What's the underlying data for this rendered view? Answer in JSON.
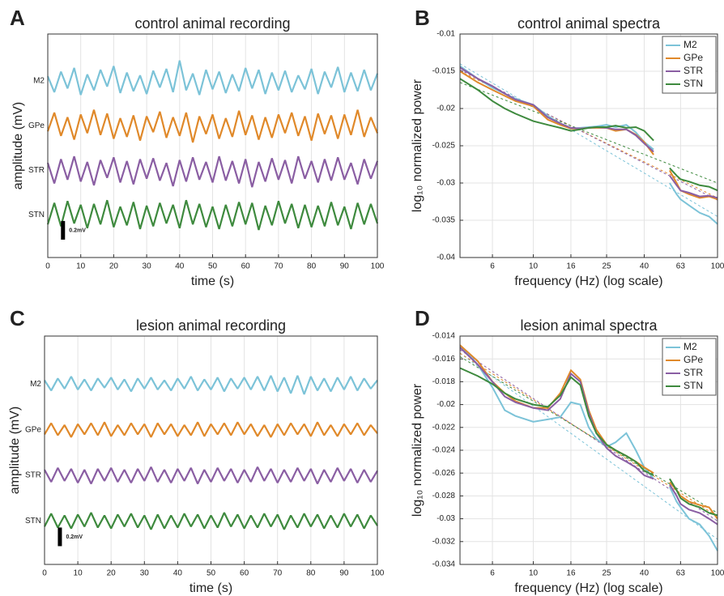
{
  "chart_data": [
    {
      "type": "trace",
      "panel": "A",
      "title": "control animal recording",
      "xlabel": "time (s)",
      "ylabel": "amplitude (mV)",
      "xlim": [
        0,
        100
      ],
      "xticks": [
        0,
        10,
        20,
        30,
        40,
        50,
        60,
        70,
        80,
        90,
        100
      ],
      "grid": true,
      "scale_bar": {
        "value": 0.2,
        "label": "0.2mV"
      },
      "x": [
        0,
        2,
        4,
        6,
        8,
        10,
        12,
        14,
        16,
        18,
        20,
        22,
        24,
        26,
        28,
        30,
        32,
        34,
        36,
        38,
        40,
        42,
        44,
        46,
        48,
        50,
        52,
        54,
        56,
        58,
        60,
        62,
        64,
        66,
        68,
        70,
        72,
        74,
        76,
        78,
        80,
        82,
        84,
        86,
        88,
        90,
        92,
        94,
        96,
        98,
        100
      ],
      "series": [
        {
          "name": "M2",
          "color": "#7cc3d8",
          "values": [
            0.05,
            -0.12,
            0.1,
            -0.08,
            0.14,
            -0.15,
            0.07,
            -0.1,
            0.12,
            -0.06,
            0.16,
            -0.13,
            0.09,
            -0.11,
            0.06,
            -0.14,
            0.11,
            -0.07,
            0.13,
            -0.12,
            0.22,
            -0.1,
            0.08,
            -0.15,
            0.12,
            -0.09,
            0.1,
            -0.13,
            0.07,
            -0.11,
            0.14,
            -0.08,
            0.12,
            -0.14,
            0.09,
            -0.1,
            0.11,
            -0.12,
            0.06,
            -0.09,
            0.13,
            -0.14,
            0.1,
            -0.07,
            0.15,
            -0.12,
            0.09,
            -0.11,
            0.12,
            -0.1,
            0.08
          ]
        },
        {
          "name": "GPe",
          "color": "#e0892a",
          "values": [
            -0.06,
            0.14,
            -0.11,
            0.09,
            -0.15,
            0.12,
            -0.08,
            0.17,
            -0.1,
            0.13,
            -0.14,
            0.08,
            -0.12,
            0.11,
            -0.16,
            0.1,
            -0.07,
            0.15,
            -0.13,
            0.09,
            -0.11,
            0.14,
            -0.18,
            0.1,
            -0.09,
            0.12,
            -0.14,
            0.08,
            -0.12,
            0.16,
            -0.1,
            0.11,
            -0.15,
            0.09,
            -0.13,
            0.12,
            -0.08,
            0.14,
            -0.11,
            0.1,
            -0.16,
            0.13,
            -0.09,
            0.11,
            -0.14,
            0.12,
            -0.1,
            0.17,
            -0.12,
            0.09,
            -0.08
          ]
        },
        {
          "name": "STR",
          "color": "#8a5ea3",
          "values": [
            0.08,
            -0.14,
            0.12,
            -0.1,
            0.15,
            -0.12,
            0.09,
            -0.16,
            0.11,
            -0.08,
            0.14,
            -0.13,
            0.1,
            -0.15,
            0.12,
            -0.09,
            0.13,
            -0.11,
            0.08,
            -0.17,
            0.11,
            -0.12,
            0.14,
            -0.1,
            0.09,
            -0.13,
            0.15,
            -0.11,
            0.1,
            -0.14,
            0.12,
            -0.18,
            0.09,
            -0.12,
            0.13,
            -0.1,
            0.11,
            -0.14,
            0.15,
            -0.09,
            0.1,
            -0.13,
            0.12,
            -0.11,
            0.14,
            -0.1,
            0.08,
            -0.15,
            0.12,
            -0.09,
            0.1
          ]
        },
        {
          "name": "STN",
          "color": "#3e8a3e",
          "values": [
            -0.1,
            0.13,
            -0.12,
            0.15,
            -0.09,
            0.11,
            -0.14,
            0.12,
            -0.1,
            0.16,
            -0.13,
            0.09,
            -0.11,
            0.14,
            -0.15,
            0.1,
            -0.12,
            0.13,
            -0.09,
            0.11,
            -0.14,
            0.16,
            -0.1,
            0.12,
            -0.13,
            0.09,
            -0.15,
            0.11,
            -0.12,
            0.14,
            -0.1,
            0.13,
            -0.16,
            0.1,
            -0.11,
            0.15,
            -0.09,
            0.12,
            -0.14,
            0.11,
            -0.13,
            0.1,
            -0.12,
            0.14,
            -0.11,
            0.09,
            -0.15,
            0.13,
            -0.1,
            0.12,
            -0.09
          ]
        }
      ]
    },
    {
      "type": "line",
      "panel": "B",
      "title": "control animal spectra",
      "xlabel": "frequency (Hz) (log scale)",
      "ylabel": "log₁₀ normalized power",
      "xscale": "log",
      "xlim": [
        4,
        100
      ],
      "xticks": [
        6,
        10,
        16,
        25,
        40,
        63,
        100
      ],
      "ylim": [
        -0.04,
        -0.01
      ],
      "yticks": [
        -0.04,
        -0.035,
        -0.03,
        -0.025,
        -0.02,
        -0.015,
        -0.01
      ],
      "grid": true,
      "legend": "top-right",
      "x": [
        4,
        5,
        6,
        7,
        8,
        10,
        12,
        14,
        16,
        18,
        20,
        22,
        25,
        28,
        32,
        36,
        40,
        45,
        50,
        55,
        60,
        63,
        70,
        80,
        90,
        100
      ],
      "series": [
        {
          "name": "M2",
          "color": "#7cc3d8",
          "values": [
            -0.0143,
            -0.016,
            -0.0172,
            -0.018,
            -0.0187,
            -0.0195,
            -0.021,
            -0.022,
            -0.0227,
            -0.0226,
            -0.0225,
            -0.0224,
            -0.0222,
            -0.0225,
            -0.0222,
            -0.0232,
            -0.0245,
            -0.0255,
            null,
            -0.03,
            -0.0315,
            -0.0322,
            -0.033,
            -0.034,
            -0.0345,
            -0.0355
          ],
          "fit": [
            -0.014,
            -0.0345
          ]
        },
        {
          "name": "GPe",
          "color": "#e0892a",
          "values": [
            -0.015,
            -0.0165,
            -0.0175,
            -0.0183,
            -0.019,
            -0.0197,
            -0.0215,
            -0.0222,
            -0.0227,
            -0.0227,
            -0.0226,
            -0.0226,
            -0.0226,
            -0.023,
            -0.0228,
            -0.0235,
            -0.0245,
            -0.0262,
            null,
            -0.0283,
            -0.03,
            -0.031,
            -0.0315,
            -0.032,
            -0.0318,
            -0.0322
          ],
          "fit": [
            -0.015,
            -0.032
          ]
        },
        {
          "name": "STR",
          "color": "#8a5ea3",
          "values": [
            -0.0145,
            -0.016,
            -0.017,
            -0.018,
            -0.0188,
            -0.0195,
            -0.0212,
            -0.022,
            -0.0226,
            -0.0227,
            -0.0226,
            -0.0225,
            -0.0226,
            -0.0228,
            -0.0228,
            -0.0236,
            -0.0247,
            -0.0258,
            null,
            -0.029,
            -0.0303,
            -0.031,
            -0.0313,
            -0.0318,
            -0.0317,
            -0.032
          ],
          "fit": [
            -0.0148,
            -0.0323
          ]
        },
        {
          "name": "STN",
          "color": "#3e8a3e",
          "values": [
            -0.016,
            -0.0175,
            -0.019,
            -0.02,
            -0.0207,
            -0.0217,
            -0.0222,
            -0.0226,
            -0.023,
            -0.0228,
            -0.0226,
            -0.0225,
            -0.0225,
            -0.0223,
            -0.0226,
            -0.0225,
            -0.023,
            -0.0243,
            null,
            -0.028,
            -0.029,
            -0.0295,
            -0.0298,
            -0.0303,
            -0.0305,
            -0.031
          ],
          "fit": [
            -0.0165,
            -0.03
          ]
        }
      ]
    },
    {
      "type": "trace",
      "panel": "C",
      "title": "lesion animal recording",
      "xlabel": "time (s)",
      "ylabel": "amplitude (mV)",
      "xlim": [
        0,
        100
      ],
      "xticks": [
        0,
        10,
        20,
        30,
        40,
        50,
        60,
        70,
        80,
        90,
        100
      ],
      "grid": true,
      "scale_bar": {
        "value": 0.2,
        "label": "0.2mV"
      },
      "x": [
        0,
        2,
        4,
        6,
        8,
        10,
        12,
        14,
        16,
        18,
        20,
        22,
        24,
        26,
        28,
        30,
        32,
        34,
        36,
        38,
        40,
        42,
        44,
        46,
        48,
        50,
        52,
        54,
        56,
        58,
        60,
        62,
        64,
        66,
        68,
        70,
        72,
        74,
        76,
        78,
        80,
        82,
        84,
        86,
        88,
        90,
        92,
        94,
        96,
        98,
        100
      ],
      "series": [
        {
          "name": "M2",
          "color": "#7cc3d8",
          "values": [
            0.04,
            -0.07,
            0.06,
            -0.05,
            0.08,
            -0.06,
            0.05,
            -0.07,
            0.06,
            -0.04,
            0.07,
            -0.06,
            0.05,
            -0.08,
            0.06,
            -0.05,
            0.07,
            -0.06,
            0.04,
            -0.07,
            0.06,
            -0.05,
            0.08,
            -0.07,
            0.05,
            -0.06,
            0.07,
            -0.08,
            0.06,
            -0.05,
            0.07,
            -0.06,
            0.08,
            -0.07,
            0.09,
            -0.08,
            0.07,
            -0.1,
            0.09,
            -0.11,
            0.08,
            -0.07,
            0.06,
            -0.08,
            0.07,
            -0.06,
            0.08,
            -0.07,
            0.06,
            -0.05,
            0.04
          ]
        },
        {
          "name": "GPe",
          "color": "#e0892a",
          "values": [
            -0.05,
            0.07,
            -0.06,
            0.05,
            -0.08,
            0.06,
            -0.05,
            0.07,
            -0.06,
            0.08,
            -0.07,
            0.05,
            -0.06,
            0.07,
            -0.05,
            0.06,
            -0.08,
            0.07,
            -0.05,
            0.06,
            -0.07,
            0.05,
            -0.06,
            0.08,
            -0.07,
            0.06,
            -0.05,
            0.07,
            -0.06,
            0.08,
            -0.05,
            0.06,
            -0.07,
            0.05,
            -0.08,
            0.06,
            -0.06,
            0.07,
            -0.05,
            0.06,
            -0.07,
            0.08,
            -0.06,
            0.05,
            -0.07,
            0.06,
            -0.05,
            0.07,
            -0.06,
            0.05,
            -0.04
          ]
        },
        {
          "name": "STR",
          "color": "#8a5ea3",
          "values": [
            0.06,
            -0.07,
            0.08,
            -0.06,
            0.07,
            -0.08,
            0.06,
            -0.09,
            0.07,
            -0.06,
            0.08,
            -0.07,
            0.06,
            -0.08,
            0.07,
            -0.06,
            0.09,
            -0.07,
            0.06,
            -0.08,
            0.07,
            -0.06,
            0.08,
            -0.09,
            0.06,
            -0.07,
            0.08,
            -0.06,
            0.07,
            -0.08,
            0.06,
            -0.07,
            0.09,
            -0.06,
            0.07,
            -0.08,
            0.06,
            -0.07,
            0.08,
            -0.06,
            0.07,
            -0.09,
            0.06,
            -0.07,
            0.08,
            -0.06,
            0.07,
            -0.08,
            0.06,
            -0.07,
            0.05
          ]
        },
        {
          "name": "STN",
          "color": "#3e8a3e",
          "values": [
            -0.06,
            0.08,
            -0.07,
            0.06,
            -0.08,
            0.07,
            -0.06,
            0.09,
            -0.07,
            0.06,
            -0.08,
            0.07,
            -0.06,
            0.08,
            -0.07,
            0.06,
            -0.09,
            0.07,
            -0.08,
            0.06,
            -0.07,
            0.08,
            -0.06,
            0.07,
            -0.08,
            0.06,
            -0.07,
            0.09,
            -0.06,
            0.07,
            -0.08,
            0.06,
            -0.07,
            0.08,
            -0.06,
            0.07,
            -0.09,
            0.06,
            -0.07,
            0.08,
            -0.06,
            0.07,
            -0.08,
            0.06,
            -0.07,
            0.08,
            -0.06,
            0.07,
            -0.08,
            0.06,
            -0.05
          ]
        }
      ]
    },
    {
      "type": "line",
      "panel": "D",
      "title": "lesion animal spectra",
      "xlabel": "frequency (Hz) (log scale)",
      "ylabel": "log₁₀ normalized power",
      "xscale": "log",
      "xlim": [
        4,
        100
      ],
      "xticks": [
        6,
        10,
        16,
        25,
        40,
        63,
        100
      ],
      "ylim": [
        -0.034,
        -0.014
      ],
      "yticks": [
        -0.034,
        -0.032,
        -0.03,
        -0.028,
        -0.026,
        -0.024,
        -0.022,
        -0.02,
        -0.018,
        -0.016,
        -0.014
      ],
      "grid": true,
      "legend": "top-right",
      "x": [
        4,
        5,
        6,
        7,
        8,
        10,
        12,
        14,
        16,
        18,
        20,
        22,
        25,
        28,
        32,
        36,
        40,
        45,
        50,
        55,
        60,
        63,
        70,
        80,
        90,
        100
      ],
      "series": [
        {
          "name": "M2",
          "color": "#7cc3d8",
          "values": [
            -0.0148,
            -0.0165,
            -0.0185,
            -0.0205,
            -0.021,
            -0.0215,
            -0.0213,
            -0.0211,
            -0.0198,
            -0.02,
            -0.022,
            -0.023,
            -0.0237,
            -0.0233,
            -0.0225,
            -0.024,
            -0.0255,
            -0.0265,
            null,
            -0.0272,
            -0.0285,
            -0.029,
            -0.03,
            -0.0305,
            -0.0315,
            -0.0328
          ],
          "fit": [
            -0.0155,
            -0.0318
          ]
        },
        {
          "name": "GPe",
          "color": "#e0892a",
          "values": [
            -0.0148,
            -0.0162,
            -0.018,
            -0.019,
            -0.0197,
            -0.0203,
            -0.0203,
            -0.019,
            -0.017,
            -0.0178,
            -0.0205,
            -0.0222,
            -0.0235,
            -0.024,
            -0.0245,
            -0.025,
            -0.0255,
            -0.026,
            null,
            -0.0268,
            -0.0275,
            -0.028,
            -0.0285,
            -0.0288,
            -0.029,
            -0.03
          ],
          "fit": [
            -0.0155,
            -0.0298
          ]
        },
        {
          "name": "STR",
          "color": "#8a5ea3",
          "values": [
            -0.015,
            -0.0165,
            -0.018,
            -0.0193,
            -0.0198,
            -0.0203,
            -0.0205,
            -0.0195,
            -0.0173,
            -0.018,
            -0.0207,
            -0.0225,
            -0.0238,
            -0.0245,
            -0.025,
            -0.0255,
            -0.0262,
            -0.0265,
            null,
            -0.027,
            -0.028,
            -0.0287,
            -0.0292,
            -0.0295,
            -0.03,
            -0.0305
          ],
          "fit": [
            -0.0152,
            -0.0302
          ]
        },
        {
          "name": "STN",
          "color": "#3e8a3e",
          "values": [
            -0.0168,
            -0.0175,
            -0.0182,
            -0.019,
            -0.0195,
            -0.02,
            -0.0202,
            -0.0192,
            -0.0176,
            -0.0183,
            -0.021,
            -0.0225,
            -0.0235,
            -0.024,
            -0.0245,
            -0.025,
            -0.0258,
            -0.0262,
            null,
            -0.0265,
            -0.0275,
            -0.0282,
            -0.0287,
            -0.029,
            -0.0295,
            -0.0297
          ],
          "fit": [
            -0.0158,
            -0.0295
          ]
        }
      ]
    }
  ]
}
